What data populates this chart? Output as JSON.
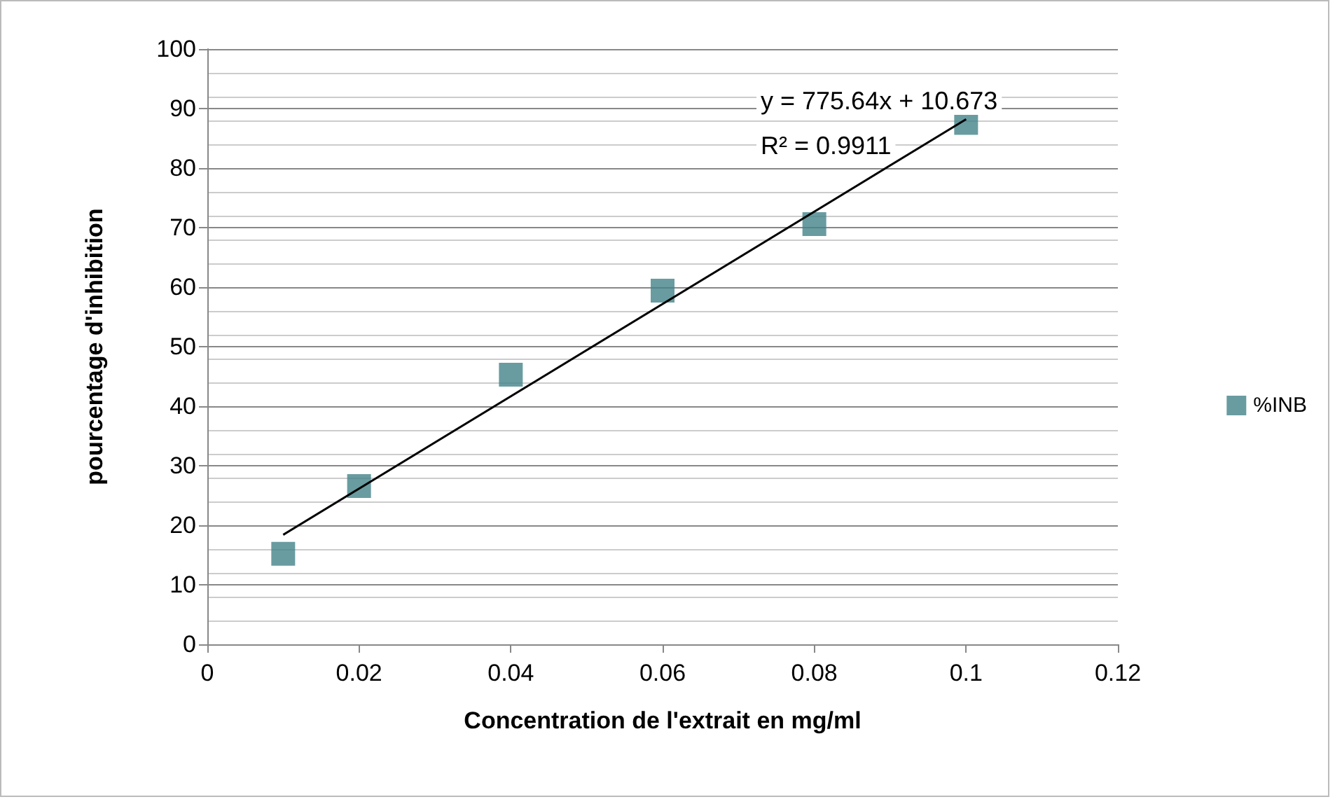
{
  "chart_data": {
    "type": "scatter",
    "xlabel": "Concentration de l'extrait en mg/ml",
    "ylabel": "pourcentage d'inhibition",
    "series": [
      {
        "name": "%INB",
        "color": "#44838a",
        "x": [
          0.01,
          0.02,
          0.04,
          0.06,
          0.08,
          0.1
        ],
        "values": [
          15.2,
          26.6,
          45.3,
          59.4,
          70.6,
          87.6
        ],
        "marker": "square"
      },
      {
        "type": "line",
        "color": "#000000",
        "x": [
          0.01,
          0.1
        ],
        "values": [
          18.4,
          88.2
        ],
        "marker": "none"
      }
    ],
    "annotations": [
      "y = 775.64x + 10.673",
      "R² = 0.9911"
    ],
    "xlim": [
      0,
      0.12
    ],
    "xticks": [
      0,
      0.02,
      0.04,
      0.06,
      0.08,
      0.1,
      0.12
    ],
    "ylim": [
      0,
      100
    ],
    "yticks": [
      0,
      10,
      20,
      30,
      40,
      50,
      60,
      70,
      80,
      90,
      100
    ],
    "grid": "y",
    "legend": "right"
  }
}
